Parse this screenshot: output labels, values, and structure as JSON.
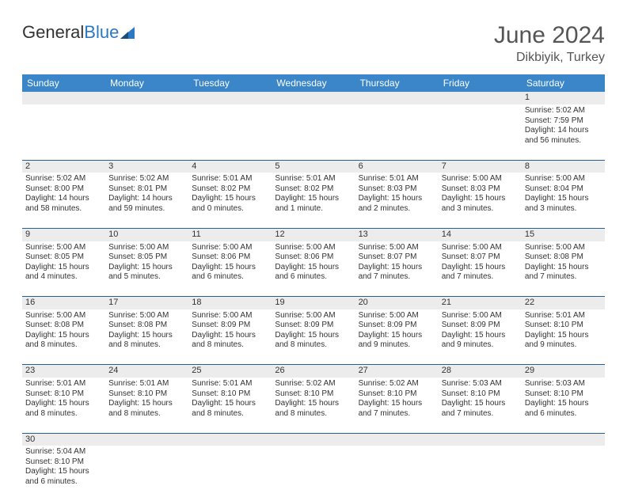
{
  "brand": {
    "part1": "General",
    "part2": "Blue"
  },
  "title": "June 2024",
  "location": "Dikbiyik, Turkey",
  "colors": {
    "header_bg": "#3a86c8",
    "header_text": "#ffffff",
    "daynum_bg": "#ececec",
    "rule": "#2b5f8f",
    "text": "#333333",
    "title_text": "#555555"
  },
  "day_headers": [
    "Sunday",
    "Monday",
    "Tuesday",
    "Wednesday",
    "Thursday",
    "Friday",
    "Saturday"
  ],
  "weeks": [
    [
      null,
      null,
      null,
      null,
      null,
      null,
      {
        "n": "1",
        "sr": "Sunrise: 5:02 AM",
        "ss": "Sunset: 7:59 PM",
        "dl": "Daylight: 14 hours and 56 minutes."
      }
    ],
    [
      {
        "n": "2",
        "sr": "Sunrise: 5:02 AM",
        "ss": "Sunset: 8:00 PM",
        "dl": "Daylight: 14 hours and 58 minutes."
      },
      {
        "n": "3",
        "sr": "Sunrise: 5:02 AM",
        "ss": "Sunset: 8:01 PM",
        "dl": "Daylight: 14 hours and 59 minutes."
      },
      {
        "n": "4",
        "sr": "Sunrise: 5:01 AM",
        "ss": "Sunset: 8:02 PM",
        "dl": "Daylight: 15 hours and 0 minutes."
      },
      {
        "n": "5",
        "sr": "Sunrise: 5:01 AM",
        "ss": "Sunset: 8:02 PM",
        "dl": "Daylight: 15 hours and 1 minute."
      },
      {
        "n": "6",
        "sr": "Sunrise: 5:01 AM",
        "ss": "Sunset: 8:03 PM",
        "dl": "Daylight: 15 hours and 2 minutes."
      },
      {
        "n": "7",
        "sr": "Sunrise: 5:00 AM",
        "ss": "Sunset: 8:03 PM",
        "dl": "Daylight: 15 hours and 3 minutes."
      },
      {
        "n": "8",
        "sr": "Sunrise: 5:00 AM",
        "ss": "Sunset: 8:04 PM",
        "dl": "Daylight: 15 hours and 3 minutes."
      }
    ],
    [
      {
        "n": "9",
        "sr": "Sunrise: 5:00 AM",
        "ss": "Sunset: 8:05 PM",
        "dl": "Daylight: 15 hours and 4 minutes."
      },
      {
        "n": "10",
        "sr": "Sunrise: 5:00 AM",
        "ss": "Sunset: 8:05 PM",
        "dl": "Daylight: 15 hours and 5 minutes."
      },
      {
        "n": "11",
        "sr": "Sunrise: 5:00 AM",
        "ss": "Sunset: 8:06 PM",
        "dl": "Daylight: 15 hours and 6 minutes."
      },
      {
        "n": "12",
        "sr": "Sunrise: 5:00 AM",
        "ss": "Sunset: 8:06 PM",
        "dl": "Daylight: 15 hours and 6 minutes."
      },
      {
        "n": "13",
        "sr": "Sunrise: 5:00 AM",
        "ss": "Sunset: 8:07 PM",
        "dl": "Daylight: 15 hours and 7 minutes."
      },
      {
        "n": "14",
        "sr": "Sunrise: 5:00 AM",
        "ss": "Sunset: 8:07 PM",
        "dl": "Daylight: 15 hours and 7 minutes."
      },
      {
        "n": "15",
        "sr": "Sunrise: 5:00 AM",
        "ss": "Sunset: 8:08 PM",
        "dl": "Daylight: 15 hours and 7 minutes."
      }
    ],
    [
      {
        "n": "16",
        "sr": "Sunrise: 5:00 AM",
        "ss": "Sunset: 8:08 PM",
        "dl": "Daylight: 15 hours and 8 minutes."
      },
      {
        "n": "17",
        "sr": "Sunrise: 5:00 AM",
        "ss": "Sunset: 8:08 PM",
        "dl": "Daylight: 15 hours and 8 minutes."
      },
      {
        "n": "18",
        "sr": "Sunrise: 5:00 AM",
        "ss": "Sunset: 8:09 PM",
        "dl": "Daylight: 15 hours and 8 minutes."
      },
      {
        "n": "19",
        "sr": "Sunrise: 5:00 AM",
        "ss": "Sunset: 8:09 PM",
        "dl": "Daylight: 15 hours and 8 minutes."
      },
      {
        "n": "20",
        "sr": "Sunrise: 5:00 AM",
        "ss": "Sunset: 8:09 PM",
        "dl": "Daylight: 15 hours and 9 minutes."
      },
      {
        "n": "21",
        "sr": "Sunrise: 5:00 AM",
        "ss": "Sunset: 8:09 PM",
        "dl": "Daylight: 15 hours and 9 minutes."
      },
      {
        "n": "22",
        "sr": "Sunrise: 5:01 AM",
        "ss": "Sunset: 8:10 PM",
        "dl": "Daylight: 15 hours and 9 minutes."
      }
    ],
    [
      {
        "n": "23",
        "sr": "Sunrise: 5:01 AM",
        "ss": "Sunset: 8:10 PM",
        "dl": "Daylight: 15 hours and 8 minutes."
      },
      {
        "n": "24",
        "sr": "Sunrise: 5:01 AM",
        "ss": "Sunset: 8:10 PM",
        "dl": "Daylight: 15 hours and 8 minutes."
      },
      {
        "n": "25",
        "sr": "Sunrise: 5:01 AM",
        "ss": "Sunset: 8:10 PM",
        "dl": "Daylight: 15 hours and 8 minutes."
      },
      {
        "n": "26",
        "sr": "Sunrise: 5:02 AM",
        "ss": "Sunset: 8:10 PM",
        "dl": "Daylight: 15 hours and 8 minutes."
      },
      {
        "n": "27",
        "sr": "Sunrise: 5:02 AM",
        "ss": "Sunset: 8:10 PM",
        "dl": "Daylight: 15 hours and 7 minutes."
      },
      {
        "n": "28",
        "sr": "Sunrise: 5:03 AM",
        "ss": "Sunset: 8:10 PM",
        "dl": "Daylight: 15 hours and 7 minutes."
      },
      {
        "n": "29",
        "sr": "Sunrise: 5:03 AM",
        "ss": "Sunset: 8:10 PM",
        "dl": "Daylight: 15 hours and 6 minutes."
      }
    ],
    [
      {
        "n": "30",
        "sr": "Sunrise: 5:04 AM",
        "ss": "Sunset: 8:10 PM",
        "dl": "Daylight: 15 hours and 6 minutes."
      },
      null,
      null,
      null,
      null,
      null,
      null
    ]
  ]
}
